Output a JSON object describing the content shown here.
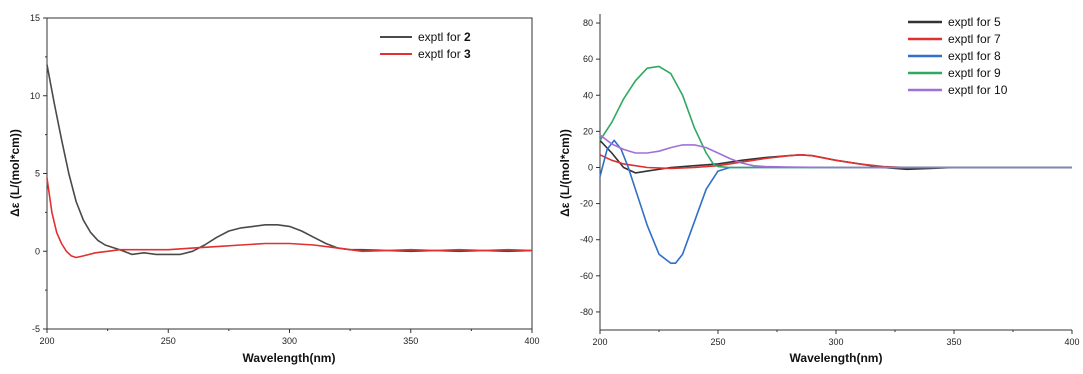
{
  "chart_data": [
    {
      "type": "line",
      "xlabel": "Wavelength(nm)",
      "ylabel": "Δε (L/(mol*cm))",
      "xlim": [
        200,
        400
      ],
      "ylim": [
        -5,
        15
      ],
      "xticks": [
        200,
        250,
        300,
        350,
        400
      ],
      "yticks": [
        -5,
        0,
        5,
        10,
        15
      ],
      "legend_position": "top-right",
      "series": [
        {
          "name": "exptl for 2",
          "label_prefix": "exptl for ",
          "label_bold": "2",
          "color": "#4a4a4a",
          "x": [
            200,
            203,
            206,
            209,
            212,
            215,
            218,
            221,
            224,
            226,
            230,
            235,
            240,
            245,
            250,
            255,
            260,
            265,
            270,
            275,
            280,
            285,
            290,
            295,
            300,
            305,
            310,
            315,
            320,
            325,
            330,
            340,
            350,
            360,
            370,
            380,
            390,
            400
          ],
          "y": [
            12.0,
            9.5,
            7.2,
            5.0,
            3.2,
            2.0,
            1.2,
            0.7,
            0.4,
            0.3,
            0.1,
            -0.2,
            -0.1,
            -0.2,
            -0.2,
            -0.2,
            0.0,
            0.4,
            0.9,
            1.3,
            1.5,
            1.6,
            1.7,
            1.7,
            1.6,
            1.3,
            0.9,
            0.5,
            0.2,
            0.1,
            0.1,
            0.05,
            0.0,
            0.05,
            0.0,
            0.05,
            0.0,
            0.05
          ]
        },
        {
          "name": "exptl for 3",
          "label_prefix": "exptl for ",
          "label_bold": "3",
          "color": "#e03030",
          "x": [
            200,
            202,
            204,
            206,
            208,
            210,
            212,
            215,
            220,
            225,
            230,
            240,
            250,
            260,
            270,
            280,
            290,
            300,
            310,
            320,
            330,
            340,
            350,
            360,
            370,
            380,
            390,
            400
          ],
          "y": [
            4.7,
            2.5,
            1.2,
            0.5,
            0.0,
            -0.3,
            -0.4,
            -0.3,
            -0.1,
            0.0,
            0.1,
            0.1,
            0.1,
            0.2,
            0.3,
            0.4,
            0.5,
            0.5,
            0.4,
            0.2,
            0.0,
            0.05,
            0.1,
            0.05,
            0.1,
            0.05,
            0.1,
            0.05
          ]
        }
      ]
    },
    {
      "type": "line",
      "xlabel": "Wavelength(nm)",
      "ylabel": "Δε (L/(mol*cm))",
      "xlim": [
        200,
        400
      ],
      "ylim": [
        -90,
        85
      ],
      "xticks": [
        200,
        250,
        300,
        350,
        400
      ],
      "yticks": [
        -80,
        -60,
        -40,
        -20,
        0,
        20,
        40,
        60,
        80
      ],
      "legend_position": "top-right",
      "series": [
        {
          "name": "exptl for 5",
          "color": "#333333",
          "x": [
            200,
            205,
            210,
            215,
            220,
            230,
            240,
            250,
            260,
            270,
            280,
            285,
            290,
            300,
            310,
            320,
            330,
            340,
            350
          ],
          "y": [
            15,
            8,
            0,
            -3,
            -2,
            0,
            1,
            2,
            4,
            5.5,
            6.5,
            7,
            6.5,
            4,
            2,
            0,
            -1,
            -0.5,
            0
          ]
        },
        {
          "name": "exptl for 7",
          "color": "#e03030",
          "x": [
            200,
            205,
            210,
            215,
            220,
            230,
            240,
            250,
            260,
            270,
            280,
            285,
            290,
            300,
            310,
            320,
            330,
            350,
            400
          ],
          "y": [
            7,
            4,
            2,
            1,
            0,
            -0.5,
            0,
            1,
            3,
            5,
            6.5,
            7,
            6.5,
            4,
            2,
            0.5,
            0,
            0,
            0
          ]
        },
        {
          "name": "exptl for 8",
          "color": "#3070c8",
          "x": [
            200,
            203,
            206,
            209,
            212,
            215,
            220,
            225,
            230,
            232,
            235,
            240,
            245,
            250,
            255,
            260,
            270,
            300,
            350,
            400
          ],
          "y": [
            -5,
            10,
            15,
            10,
            0,
            -12,
            -32,
            -48,
            -53,
            -53,
            -48,
            -30,
            -12,
            -2,
            0,
            0,
            0,
            0,
            0,
            0
          ]
        },
        {
          "name": "exptl for 9",
          "color": "#30a860",
          "x": [
            200,
            205,
            210,
            215,
            220,
            225,
            230,
            235,
            240,
            245,
            248,
            250,
            255,
            260,
            270,
            300,
            350,
            400
          ],
          "y": [
            15,
            25,
            38,
            48,
            55,
            56,
            52,
            40,
            22,
            8,
            2,
            0.5,
            0,
            0,
            0,
            0,
            0,
            0
          ]
        },
        {
          "name": "exptl for 10",
          "color": "#a070d8",
          "x": [
            200,
            205,
            210,
            215,
            220,
            225,
            230,
            235,
            240,
            245,
            250,
            255,
            260,
            265,
            270,
            280,
            300,
            320,
            340,
            360,
            380,
            400
          ],
          "y": [
            18,
            13,
            10,
            8,
            8,
            9,
            11,
            12.5,
            12.5,
            11,
            8,
            5,
            2.5,
            1,
            0.5,
            0.2,
            0,
            0,
            0,
            0,
            0,
            0
          ]
        }
      ]
    }
  ]
}
